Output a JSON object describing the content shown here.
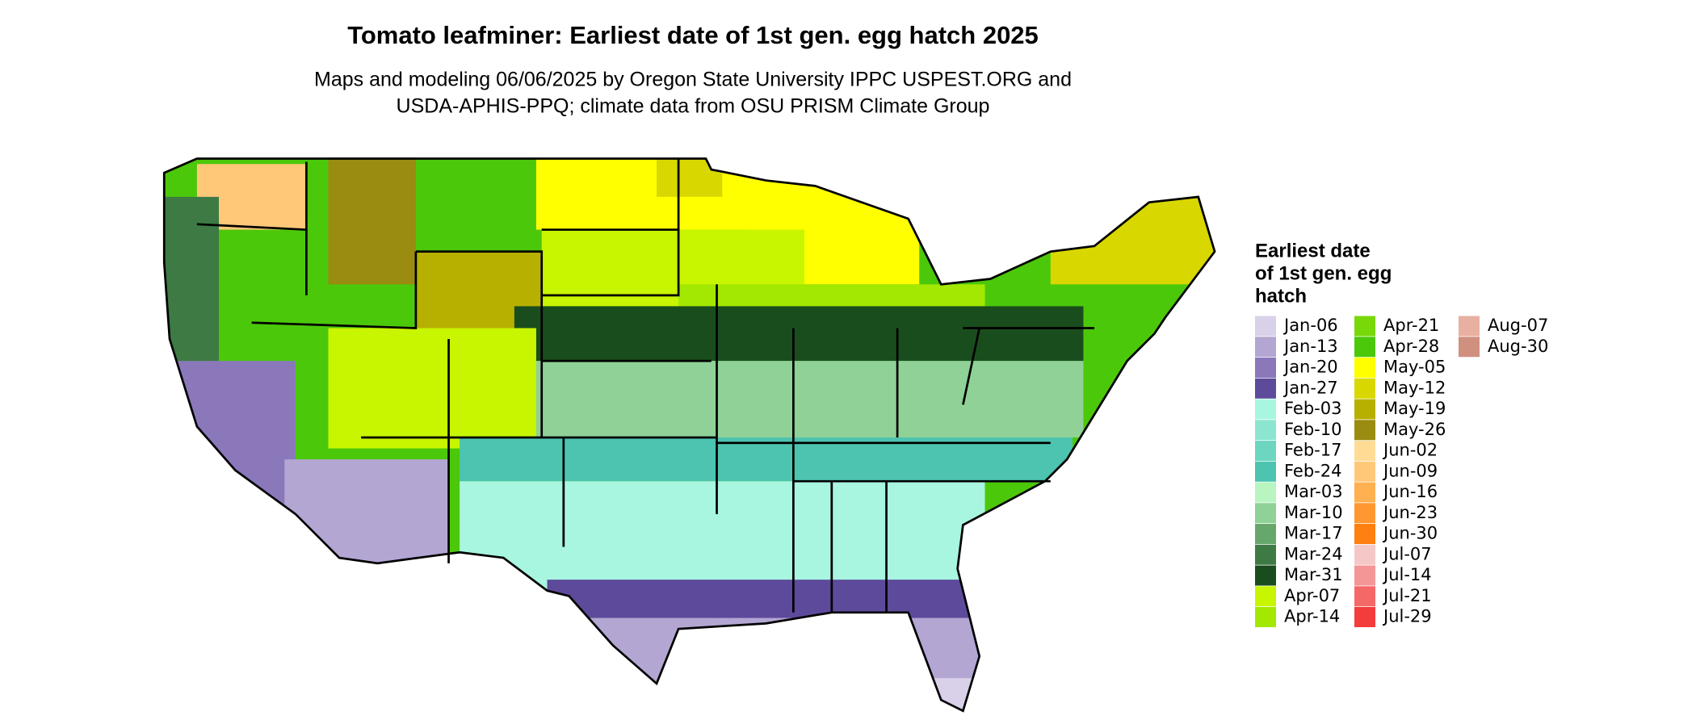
{
  "title": "Tomato leafminer: Earliest date of 1st gen. egg hatch 2025",
  "subtitle": [
    "Maps and modeling 06/06/2025 by Oregon State University IPPC USPEST.ORG and",
    "USDA-APHIS-PPQ; climate data from OSU PRISM Climate Group"
  ],
  "legend": {
    "title": [
      "Earliest date",
      "of 1st gen. egg",
      "hatch"
    ],
    "items": [
      {
        "label": "Jan-06",
        "color": "#d9d0ea"
      },
      {
        "label": "Jan-13",
        "color": "#b3a6d3"
      },
      {
        "label": "Jan-20",
        "color": "#8a78bb"
      },
      {
        "label": "Jan-27",
        "color": "#5e4a9a"
      },
      {
        "label": "Feb-03",
        "color": "#a8f5e0"
      },
      {
        "label": "Feb-10",
        "color": "#8ce6cf"
      },
      {
        "label": "Feb-17",
        "color": "#6dd6c0"
      },
      {
        "label": "Feb-24",
        "color": "#4cc4b0"
      },
      {
        "label": "Mar-03",
        "color": "#b8f5c0"
      },
      {
        "label": "Mar-10",
        "color": "#8fd196"
      },
      {
        "label": "Mar-17",
        "color": "#66a86c"
      },
      {
        "label": "Mar-24",
        "color": "#3d7a44"
      },
      {
        "label": "Mar-31",
        "color": "#1a4d1e"
      },
      {
        "label": "Apr-07",
        "color": "#c8f500"
      },
      {
        "label": "Apr-14",
        "color": "#a3e800"
      },
      {
        "label": "Apr-21",
        "color": "#78d80a"
      },
      {
        "label": "Apr-28",
        "color": "#4cc80a"
      },
      {
        "label": "May-05",
        "color": "#ffff00"
      },
      {
        "label": "May-12",
        "color": "#d8d800"
      },
      {
        "label": "May-19",
        "color": "#b8b000"
      },
      {
        "label": "May-26",
        "color": "#9a8c10"
      },
      {
        "label": "Jun-02",
        "color": "#ffdc96"
      },
      {
        "label": "Jun-09",
        "color": "#ffc878"
      },
      {
        "label": "Jun-16",
        "color": "#ffb050"
      },
      {
        "label": "Jun-23",
        "color": "#ff9830"
      },
      {
        "label": "Jun-30",
        "color": "#ff8010"
      },
      {
        "label": "Jul-07",
        "color": "#f5c8c8"
      },
      {
        "label": "Jul-14",
        "color": "#f59696"
      },
      {
        "label": "Jul-21",
        "color": "#f56868"
      },
      {
        "label": "Jul-29",
        "color": "#f53c3c"
      },
      {
        "label": "Aug-07",
        "color": "#e8b0a0"
      },
      {
        "label": "Aug-30",
        "color": "#d09080"
      }
    ]
  }
}
